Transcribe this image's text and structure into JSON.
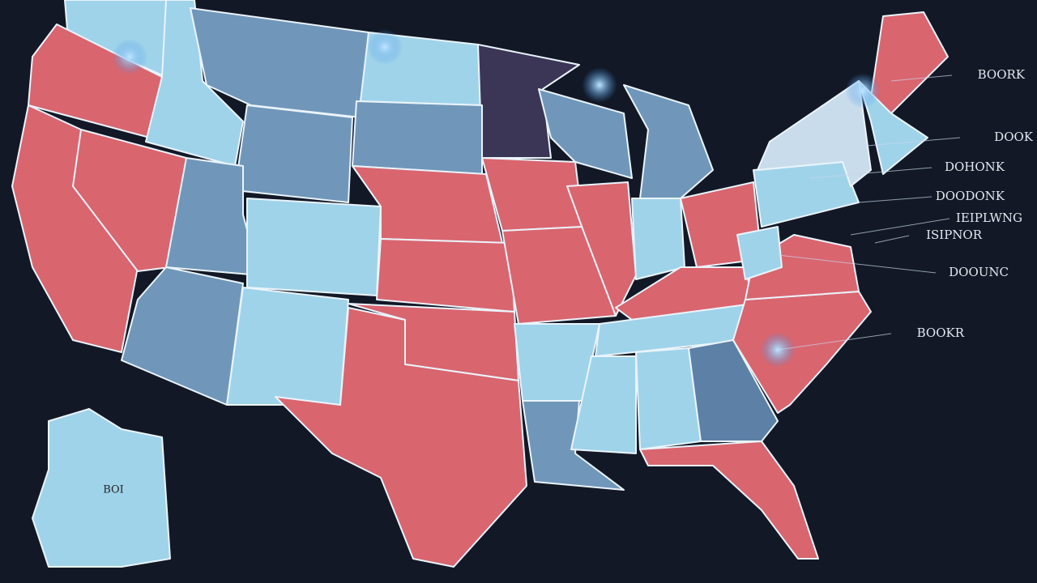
{
  "labels": [
    "BOORK",
    "DOOK",
    "DOHONK",
    "DOODONK",
    "IEIPLWNG",
    "ISIPNOR",
    "DOOUNC",
    "BOOKR"
  ],
  "alaska_label": "BOI"
}
